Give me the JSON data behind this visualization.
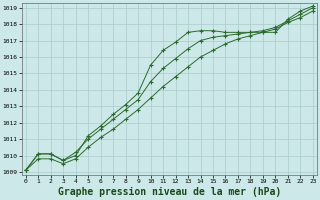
{
  "bg_color": "#cce8e8",
  "grid_color": "#aacccc",
  "line_color": "#2d6a2d",
  "xlabel": "Graphe pression niveau de la mer (hPa)",
  "xlabel_fontsize": 7,
  "xlim": [
    -0.3,
    23.3
  ],
  "ylim": [
    1008.8,
    1019.3
  ],
  "xticks": [
    0,
    1,
    2,
    3,
    4,
    5,
    6,
    7,
    8,
    9,
    10,
    11,
    12,
    13,
    14,
    15,
    16,
    17,
    18,
    19,
    20,
    21,
    22,
    23
  ],
  "yticks": [
    1009,
    1010,
    1011,
    1012,
    1013,
    1014,
    1015,
    1016,
    1017,
    1018,
    1019
  ],
  "series": [
    [
      1009.1,
      1010.1,
      1010.1,
      1009.7,
      1010.0,
      1011.2,
      1011.8,
      1012.5,
      1013.1,
      1013.8,
      1015.5,
      1016.4,
      1016.9,
      1017.5,
      1017.6,
      1017.6,
      1017.5,
      1017.5,
      1017.5,
      1017.5,
      1017.5,
      1018.3,
      1018.8,
      1019.1
    ],
    [
      1009.1,
      1010.1,
      1010.1,
      1009.7,
      1010.2,
      1011.0,
      1011.6,
      1012.2,
      1012.8,
      1013.4,
      1014.5,
      1015.3,
      1015.9,
      1016.5,
      1017.0,
      1017.2,
      1017.3,
      1017.4,
      1017.5,
      1017.6,
      1017.8,
      1018.2,
      1018.6,
      1019.0
    ],
    [
      1009.1,
      1009.8,
      1009.8,
      1009.5,
      1009.8,
      1010.5,
      1011.1,
      1011.6,
      1012.2,
      1012.8,
      1013.5,
      1014.2,
      1014.8,
      1015.4,
      1016.0,
      1016.4,
      1016.8,
      1017.1,
      1017.3,
      1017.5,
      1017.7,
      1018.1,
      1018.4,
      1018.8
    ]
  ]
}
